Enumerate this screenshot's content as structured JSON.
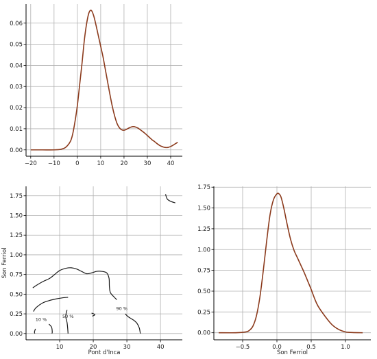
{
  "colors": {
    "curve": "#8b3a1c",
    "contour": "#1a1a1a",
    "grid": "#b0b0b0",
    "axis": "#000000"
  },
  "chart_data": [
    {
      "type": "line",
      "panel": "top-left",
      "xlabel": "",
      "ylabel": "",
      "xlim": [
        -22,
        45
      ],
      "ylim": [
        -0.003,
        0.069
      ],
      "xticks": [
        -20,
        -10,
        0,
        10,
        20,
        30,
        40
      ],
      "yticks": [
        0.0,
        0.01,
        0.02,
        0.03,
        0.04,
        0.05,
        0.06
      ],
      "xtick_labels": [
        "−20",
        "−10",
        "0",
        "10",
        "20",
        "30",
        "40"
      ],
      "ytick_labels": [
        "0.00",
        "0.01",
        "0.02",
        "0.03",
        "0.04",
        "0.05",
        "0.06"
      ],
      "grid": true,
      "series": [
        {
          "x": [
            -20,
            -15,
            -10,
            -7,
            -5,
            -3,
            -2,
            -1,
            0,
            1,
            2,
            3,
            4,
            5,
            6,
            7,
            8,
            9,
            10,
            11,
            12,
            13,
            14,
            15,
            16,
            17,
            18,
            19,
            20,
            21,
            22,
            23,
            24,
            25,
            26,
            27,
            28,
            29,
            30,
            31,
            32,
            33,
            34,
            35,
            36,
            37,
            38,
            39,
            40,
            41,
            42,
            43
          ],
          "y": [
            0.0,
            0.0,
            0.0,
            0.0003,
            0.0012,
            0.004,
            0.0075,
            0.0135,
            0.021,
            0.031,
            0.041,
            0.052,
            0.06,
            0.065,
            0.066,
            0.0635,
            0.059,
            0.054,
            0.049,
            0.044,
            0.038,
            0.032,
            0.026,
            0.0205,
            0.016,
            0.0125,
            0.0105,
            0.0095,
            0.0093,
            0.0097,
            0.0103,
            0.0108,
            0.011,
            0.0108,
            0.0103,
            0.0095,
            0.0087,
            0.0078,
            0.0068,
            0.0058,
            0.0048,
            0.004,
            0.0031,
            0.0023,
            0.0017,
            0.0013,
            0.0011,
            0.0012,
            0.0016,
            0.0022,
            0.0029,
            0.0036
          ]
        }
      ]
    },
    {
      "type": "contour",
      "panel": "bottom-left",
      "xlabel": "Pont d'Inca",
      "ylabel": "Son Ferriol",
      "xlim": [
        0,
        46.5
      ],
      "ylim": [
        -0.08,
        1.87
      ],
      "xticks": [
        10,
        20,
        30,
        40
      ],
      "yticks": [
        0.0,
        0.25,
        0.5,
        0.75,
        1.0,
        1.25,
        1.5,
        1.75
      ],
      "xtick_labels": [
        "10",
        "20",
        "30",
        "40"
      ],
      "ytick_labels": [
        "0.00",
        "0.25",
        "0.50",
        "0.75",
        "1.00",
        "1.25",
        "1.50",
        "1.75"
      ],
      "grid": true,
      "contour_labels": [
        {
          "text": "10 %",
          "x": 4.5,
          "y": 0.16
        },
        {
          "text": "50 %",
          "x": 12.5,
          "y": 0.2
        },
        {
          "text": "90 %",
          "x": 28.5,
          "y": 0.3
        }
      ],
      "contours": [
        {
          "points": [
            [
              2,
              0.58
            ],
            [
              3,
              0.61
            ],
            [
              5,
              0.66
            ],
            [
              7,
              0.7
            ],
            [
              8.5,
              0.75
            ],
            [
              10,
              0.8
            ],
            [
              12,
              0.83
            ],
            [
              13.5,
              0.835
            ],
            [
              15,
              0.82
            ],
            [
              16.5,
              0.79
            ],
            [
              18,
              0.76
            ],
            [
              19.5,
              0.77
            ],
            [
              21,
              0.79
            ],
            [
              22.5,
              0.79
            ],
            [
              24,
              0.77
            ],
            [
              24.7,
              0.7
            ],
            [
              24.8,
              0.6
            ],
            [
              25.1,
              0.52
            ],
            [
              26.3,
              0.46
            ],
            [
              27,
              0.43
            ]
          ]
        },
        {
          "points": [
            [
              2.2,
              0.28
            ],
            [
              3,
              0.33
            ],
            [
              5,
              0.39
            ],
            [
              7,
              0.42
            ],
            [
              9,
              0.44
            ],
            [
              11,
              0.455
            ],
            [
              12.5,
              0.46
            ]
          ]
        },
        {
          "points": [
            [
              12.2,
              0.3
            ],
            [
              11.8,
              0.22
            ],
            [
              12.2,
              0.14
            ],
            [
              12.4,
              0.06
            ],
            [
              12.5,
              0.0
            ]
          ]
        },
        {
          "points": [
            [
              29.5,
              0.25
            ],
            [
              30.5,
              0.21
            ],
            [
              32,
              0.17
            ],
            [
              33,
              0.13
            ],
            [
              33.7,
              0.07
            ],
            [
              34,
              0.0
            ]
          ]
        },
        {
          "points": [
            [
              2.8,
              0.06
            ],
            [
              2.5,
              0.02
            ],
            [
              2.6,
              0.0
            ]
          ]
        },
        {
          "points": [
            [
              6.8,
              0.12
            ],
            [
              7.6,
              0.08
            ],
            [
              7.8,
              0.02
            ],
            [
              7.7,
              0.0
            ]
          ]
        },
        {
          "points": [
            [
              19.5,
              0.26
            ],
            [
              20.5,
              0.24
            ],
            [
              19.7,
              0.22
            ]
          ]
        },
        {
          "points": [
            [
              41.5,
              1.77
            ],
            [
              42,
              1.71
            ],
            [
              43,
              1.68
            ],
            [
              44.4,
              1.66
            ]
          ]
        }
      ]
    },
    {
      "type": "line",
      "panel": "bottom-right",
      "xlabel": "Son Ferriol",
      "ylabel": "",
      "xlim": [
        -0.92,
        1.37
      ],
      "ylim": [
        -0.085,
        1.76
      ],
      "xticks": [
        -0.5,
        0.0,
        0.5,
        1.0
      ],
      "yticks": [
        0.0,
        0.25,
        0.5,
        0.75,
        1.0,
        1.25,
        1.5,
        1.75
      ],
      "xtick_labels": [
        "−0.5",
        "0.0",
        "0.5",
        "1.0"
      ],
      "ytick_labels": [
        "0.00",
        "0.25",
        "0.50",
        "0.75",
        "1.00",
        "1.25",
        "1.50",
        "1.75"
      ],
      "grid": true,
      "series": [
        {
          "x": [
            -0.85,
            -0.6,
            -0.45,
            -0.4,
            -0.35,
            -0.3,
            -0.25,
            -0.2,
            -0.15,
            -0.1,
            -0.05,
            0.0,
            0.03,
            0.06,
            0.1,
            0.15,
            0.2,
            0.25,
            0.3,
            0.35,
            0.4,
            0.45,
            0.5,
            0.55,
            0.6,
            0.7,
            0.8,
            0.9,
            1.0,
            1.1,
            1.25
          ],
          "y": [
            0.0,
            0.0,
            0.01,
            0.03,
            0.08,
            0.2,
            0.42,
            0.74,
            1.1,
            1.42,
            1.6,
            1.67,
            1.67,
            1.63,
            1.5,
            1.3,
            1.12,
            0.99,
            0.9,
            0.81,
            0.72,
            0.62,
            0.52,
            0.41,
            0.32,
            0.2,
            0.1,
            0.04,
            0.01,
            0.003,
            0.0
          ]
        }
      ]
    }
  ]
}
